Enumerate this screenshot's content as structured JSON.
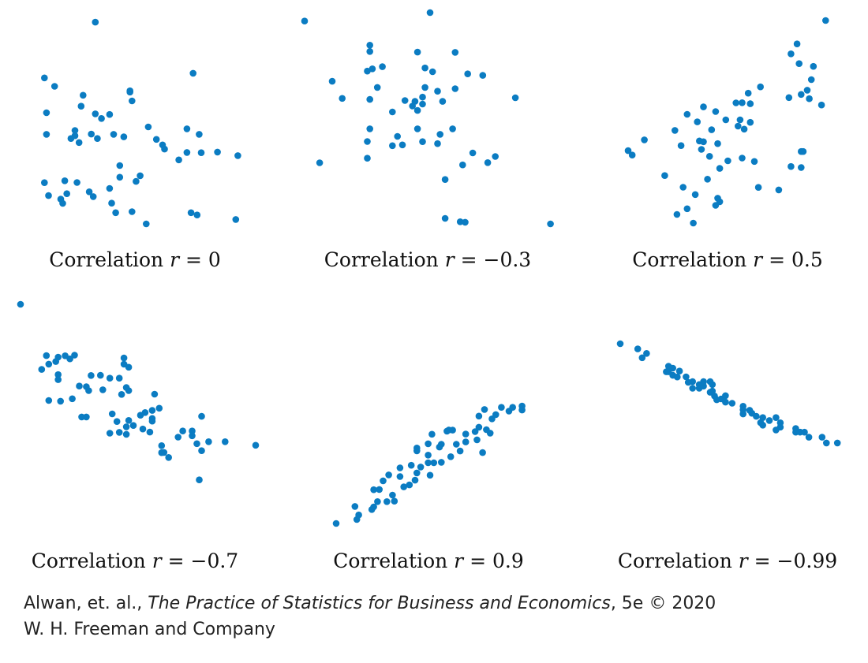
{
  "chart_data": [
    {
      "type": "scatter",
      "caption": {
        "prefix": "Correlation ",
        "var": "r",
        "rest": " = 0"
      },
      "r": 0,
      "points": [
        [
          2.9,
          95.5
        ],
        [
          7.7,
          71.3
        ],
        [
          0.4,
          69.1
        ],
        [
          0.9,
          65.1
        ],
        [
          2.3,
          60.9
        ],
        [
          2.2,
          55.7
        ],
        [
          4.6,
          62.4
        ],
        [
          4.7,
          58.2
        ],
        [
          8.0,
          42.4
        ],
        [
          0.5,
          52.6
        ],
        [
          2.9,
          52.1
        ],
        [
          3.2,
          49.9
        ],
        [
          3.6,
          51.8
        ],
        [
          1.9,
          44.2
        ],
        [
          1.7,
          40.4
        ],
        [
          2.7,
          42.5
        ],
        [
          5.5,
          45.9
        ],
        [
          7.4,
          45.0
        ],
        [
          0.5,
          42.4
        ],
        [
          1.9,
          41.7
        ],
        [
          2.1,
          38.5
        ],
        [
          3.0,
          40.4
        ],
        [
          3.8,
          42.4
        ],
        [
          4.3,
          41.2
        ],
        [
          5.9,
          40.0
        ],
        [
          6.2,
          37.4
        ],
        [
          6.3,
          35.4
        ],
        [
          7.4,
          33.8
        ],
        [
          8.1,
          33.7
        ],
        [
          8.9,
          34.0
        ],
        [
          9.9,
          32.3
        ],
        [
          7.0,
          30.3
        ],
        [
          4.1,
          27.6
        ],
        [
          4.1,
          22.1
        ],
        [
          5.1,
          22.8
        ],
        [
          4.9,
          20.1
        ],
        [
          2.0,
          19.6
        ],
        [
          1.4,
          20.4
        ],
        [
          3.6,
          16.8
        ],
        [
          1.5,
          14.3
        ],
        [
          2.6,
          15.2
        ],
        [
          2.8,
          12.9
        ],
        [
          1.2,
          11.7
        ],
        [
          1.3,
          9.7
        ],
        [
          0.4,
          19.5
        ],
        [
          0.6,
          13.4
        ],
        [
          3.7,
          9.8
        ],
        [
          3.9,
          5.3
        ],
        [
          4.7,
          5.8
        ],
        [
          7.6,
          5.3
        ],
        [
          7.9,
          4.2
        ],
        [
          9.8,
          2.1
        ],
        [
          5.4,
          0.0
        ],
        [
          4.6,
          63.0
        ]
      ]
    },
    {
      "type": "scatter",
      "caption": {
        "prefix": "Correlation ",
        "var": "r",
        "rest": " = −0.3"
      },
      "r": -0.3,
      "points": [
        [
          0.0,
          96.0
        ],
        [
          5.0,
          100.0
        ],
        [
          2.6,
          84.6
        ],
        [
          2.6,
          81.6
        ],
        [
          4.5,
          81.3
        ],
        [
          6.0,
          81.2
        ],
        [
          2.5,
          72.3
        ],
        [
          3.1,
          74.4
        ],
        [
          2.7,
          73.4
        ],
        [
          4.8,
          73.8
        ],
        [
          5.1,
          72.0
        ],
        [
          6.5,
          71.0
        ],
        [
          7.1,
          70.3
        ],
        [
          2.9,
          64.6
        ],
        [
          4.8,
          64.6
        ],
        [
          5.3,
          62.8
        ],
        [
          6.0,
          64.0
        ],
        [
          1.5,
          59.4
        ],
        [
          2.6,
          58.9
        ],
        [
          4.0,
          58.4
        ],
        [
          4.4,
          58.0
        ],
        [
          4.7,
          60.0
        ],
        [
          5.5,
          58.0
        ],
        [
          8.4,
          59.7
        ],
        [
          4.3,
          55.8
        ],
        [
          4.5,
          53.7
        ],
        [
          4.7,
          56.7
        ],
        [
          3.5,
          53.0
        ],
        [
          2.6,
          45.0
        ],
        [
          2.5,
          39.0
        ],
        [
          3.7,
          41.4
        ],
        [
          3.9,
          37.4
        ],
        [
          4.7,
          38.9
        ],
        [
          4.5,
          45.0
        ],
        [
          5.4,
          42.4
        ],
        [
          5.9,
          45.0
        ],
        [
          6.7,
          33.6
        ],
        [
          6.3,
          27.9
        ],
        [
          7.3,
          29.0
        ],
        [
          7.6,
          31.9
        ],
        [
          2.5,
          31.1
        ],
        [
          5.6,
          21.0
        ],
        [
          0.6,
          28.9
        ],
        [
          1.1,
          67.5
        ],
        [
          5.6,
          2.6
        ],
        [
          6.2,
          1.0
        ],
        [
          6.4,
          0.8
        ],
        [
          9.8,
          0.0
        ],
        [
          3.5,
          37.0
        ],
        [
          5.3,
          38.0
        ]
      ]
    },
    {
      "type": "scatter",
      "caption": {
        "prefix": "Correlation ",
        "var": "r",
        "rest": " = 0.5"
      },
      "r": 0.5,
      "points": [
        [
          9.7,
          100.0
        ],
        [
          8.3,
          88.9
        ],
        [
          8.0,
          84.2
        ],
        [
          8.4,
          79.6
        ],
        [
          9.0,
          72.0
        ],
        [
          9.1,
          78.3
        ],
        [
          8.5,
          65.0
        ],
        [
          8.9,
          63.0
        ],
        [
          7.9,
          63.5
        ],
        [
          8.8,
          67.0
        ],
        [
          9.5,
          60.0
        ],
        [
          5.9,
          65.6
        ],
        [
          6.5,
          68.6
        ],
        [
          5.3,
          61.0
        ],
        [
          6.0,
          60.6
        ],
        [
          5.6,
          61.1
        ],
        [
          3.7,
          59.1
        ],
        [
          2.9,
          55.6
        ],
        [
          4.3,
          56.9
        ],
        [
          5.5,
          53.0
        ],
        [
          5.4,
          50.0
        ],
        [
          6.0,
          51.8
        ],
        [
          5.7,
          48.6
        ],
        [
          3.4,
          52.0
        ],
        [
          4.8,
          53.0
        ],
        [
          4.1,
          48.3
        ],
        [
          3.5,
          43.0
        ],
        [
          4.4,
          41.7
        ],
        [
          3.6,
          39.0
        ],
        [
          3.7,
          42.6
        ],
        [
          2.6,
          40.8
        ],
        [
          2.3,
          48.0
        ],
        [
          4.0,
          35.7
        ],
        [
          4.9,
          33.6
        ],
        [
          6.2,
          33.3
        ],
        [
          8.5,
          38.0
        ],
        [
          8.6,
          38.0
        ],
        [
          8.0,
          30.9
        ],
        [
          8.5,
          30.4
        ],
        [
          4.5,
          30.0
        ],
        [
          3.9,
          24.9
        ],
        [
          5.6,
          34.9
        ],
        [
          1.8,
          26.6
        ],
        [
          2.7,
          21.1
        ],
        [
          3.3,
          17.6
        ],
        [
          4.4,
          15.9
        ],
        [
          4.5,
          14.2
        ],
        [
          2.4,
          8.2
        ],
        [
          3.2,
          4.1
        ],
        [
          2.9,
          10.9
        ],
        [
          6.4,
          21.0
        ],
        [
          7.4,
          19.8
        ],
        [
          0.2,
          36.3
        ],
        [
          0.0,
          38.4
        ],
        [
          0.8,
          43.5
        ],
        [
          4.3,
          12.5
        ]
      ]
    },
    {
      "type": "scatter",
      "caption": {
        "prefix": "Correlation ",
        "var": "r",
        "rest": " = −0.7"
      },
      "r": -0.7,
      "points": [
        [
          0.0,
          100.0
        ],
        [
          1.1,
          76.6
        ],
        [
          1.6,
          75.9
        ],
        [
          1.9,
          76.5
        ],
        [
          2.3,
          76.8
        ],
        [
          2.1,
          75.1
        ],
        [
          1.5,
          73.9
        ],
        [
          1.2,
          72.7
        ],
        [
          0.9,
          70.3
        ],
        [
          1.6,
          67.9
        ],
        [
          1.6,
          65.6
        ],
        [
          4.4,
          75.5
        ],
        [
          4.4,
          72.7
        ],
        [
          4.6,
          71.3
        ],
        [
          3.0,
          67.5
        ],
        [
          3.4,
          67.6
        ],
        [
          3.8,
          66.3
        ],
        [
          4.2,
          66.3
        ],
        [
          2.5,
          62.7
        ],
        [
          2.8,
          62.4
        ],
        [
          2.9,
          60.6
        ],
        [
          2.2,
          56.9
        ],
        [
          3.5,
          61.0
        ],
        [
          4.5,
          62.0
        ],
        [
          4.6,
          60.6
        ],
        [
          5.7,
          59.0
        ],
        [
          4.3,
          58.9
        ],
        [
          1.2,
          56.1
        ],
        [
          1.7,
          55.8
        ],
        [
          2.6,
          48.6
        ],
        [
          2.8,
          48.6
        ],
        [
          3.9,
          50.0
        ],
        [
          4.1,
          46.5
        ],
        [
          4.6,
          47.0
        ],
        [
          5.1,
          49.4
        ],
        [
          5.3,
          50.6
        ],
        [
          5.6,
          51.6
        ],
        [
          5.9,
          52.6
        ],
        [
          5.6,
          47.9
        ],
        [
          5.6,
          46.7
        ],
        [
          4.5,
          44.1
        ],
        [
          4.8,
          44.7
        ],
        [
          3.8,
          41.2
        ],
        [
          4.2,
          41.6
        ],
        [
          4.5,
          40.7
        ],
        [
          5.5,
          41.7
        ],
        [
          5.2,
          43.1
        ],
        [
          6.7,
          39.4
        ],
        [
          6.9,
          42.2
        ],
        [
          7.3,
          42.2
        ],
        [
          7.7,
          48.9
        ],
        [
          8.0,
          37.3
        ],
        [
          8.7,
          37.3
        ],
        [
          7.5,
          36.4
        ],
        [
          7.7,
          33.2
        ],
        [
          6.0,
          35.5
        ],
        [
          6.1,
          32.4
        ],
        [
          6.3,
          30.1
        ],
        [
          10.0,
          35.7
        ],
        [
          7.6,
          19.9
        ],
        [
          6.0,
          32.3
        ],
        [
          7.3,
          40.0
        ]
      ]
    },
    {
      "type": "scatter",
      "caption": {
        "prefix": "Correlation ",
        "var": "r",
        "rest": " = 0.9"
      },
      "r": 0.9,
      "points": [
        [
          0.0,
          0.0
        ],
        [
          1.1,
          2.4
        ],
        [
          1.2,
          5.2
        ],
        [
          1.9,
          8.5
        ],
        [
          2.0,
          10.1
        ],
        [
          2.2,
          13.3
        ],
        [
          2.7,
          13.3
        ],
        [
          3.1,
          13.6
        ],
        [
          2.0,
          20.6
        ],
        [
          3.0,
          17.3
        ],
        [
          3.6,
          22.3
        ],
        [
          3.9,
          23.5
        ],
        [
          4.2,
          26.4
        ],
        [
          4.3,
          30.8
        ],
        [
          5.0,
          29.4
        ],
        [
          4.5,
          34.4
        ],
        [
          4.0,
          35.5
        ],
        [
          3.4,
          33.9
        ],
        [
          2.5,
          26.0
        ],
        [
          2.8,
          29.6
        ],
        [
          3.4,
          28.6
        ],
        [
          4.9,
          37.0
        ],
        [
          5.2,
          37.0
        ],
        [
          5.6,
          37.3
        ],
        [
          4.3,
          46.0
        ],
        [
          4.3,
          44.3
        ],
        [
          4.9,
          41.7
        ],
        [
          4.9,
          48.6
        ],
        [
          5.6,
          48.3
        ],
        [
          6.4,
          48.3
        ],
        [
          6.6,
          44.2
        ],
        [
          6.9,
          49.7
        ],
        [
          7.5,
          51.0
        ],
        [
          6.9,
          54.5
        ],
        [
          5.1,
          54.4
        ],
        [
          5.9,
          56.3
        ],
        [
          6.2,
          56.9
        ],
        [
          7.4,
          56.0
        ],
        [
          7.6,
          58.7
        ],
        [
          8.0,
          57.2
        ],
        [
          8.2,
          55.1
        ],
        [
          6.0,
          57.0
        ],
        [
          8.3,
          63.8
        ],
        [
          8.5,
          66.4
        ],
        [
          7.6,
          65.5
        ],
        [
          7.9,
          69.5
        ],
        [
          9.2,
          68.5
        ],
        [
          8.8,
          70.8
        ],
        [
          9.4,
          70.8
        ],
        [
          9.9,
          71.6
        ],
        [
          9.9,
          69.2
        ],
        [
          5.5,
          46.6
        ],
        [
          6.1,
          40.7
        ],
        [
          7.8,
          43.2
        ],
        [
          1.0,
          10.4
        ],
        [
          2.3,
          20.7
        ]
      ]
    },
    {
      "type": "scatter",
      "caption": {
        "prefix": "Correlation ",
        "var": "r",
        "rest": " = −0.99"
      },
      "r": -0.99,
      "points": [
        [
          0.0,
          100.0
        ],
        [
          0.8,
          97.1
        ],
        [
          1.2,
          94.6
        ],
        [
          1.0,
          92.2
        ],
        [
          2.2,
          84.4
        ],
        [
          2.4,
          86.4
        ],
        [
          2.4,
          82.4
        ],
        [
          2.6,
          81.5
        ],
        [
          2.7,
          84.8
        ],
        [
          3.0,
          81.6
        ],
        [
          3.3,
          78.9
        ],
        [
          3.1,
          78.5
        ],
        [
          3.6,
          77.3
        ],
        [
          3.8,
          76.4
        ],
        [
          3.8,
          78.9
        ],
        [
          4.1,
          78.9
        ],
        [
          4.2,
          77.3
        ],
        [
          3.3,
          75.2
        ],
        [
          3.6,
          75.2
        ],
        [
          4.2,
          73.7
        ],
        [
          4.3,
          70.9
        ],
        [
          4.6,
          69.3
        ],
        [
          4.8,
          71.1
        ],
        [
          4.8,
          67.5
        ],
        [
          5.1,
          66.9
        ],
        [
          5.6,
          65.2
        ],
        [
          5.6,
          63.2
        ],
        [
          5.6,
          60.9
        ],
        [
          5.9,
          63.0
        ],
        [
          6.0,
          61.3
        ],
        [
          6.2,
          59.6
        ],
        [
          6.5,
          58.9
        ],
        [
          6.4,
          56.1
        ],
        [
          6.8,
          57.3
        ],
        [
          7.1,
          58.9
        ],
        [
          7.3,
          56.0
        ],
        [
          7.3,
          53.6
        ],
        [
          8.0,
          52.8
        ],
        [
          8.0,
          50.8
        ],
        [
          8.2,
          50.8
        ],
        [
          8.4,
          50.8
        ],
        [
          8.6,
          48.0
        ],
        [
          9.2,
          48.0
        ],
        [
          9.4,
          44.8
        ],
        [
          9.9,
          44.8
        ],
        [
          2.1,
          84.4
        ],
        [
          2.2,
          87.5
        ],
        [
          4.4,
          68.8
        ],
        [
          6.5,
          54.7
        ],
        [
          7.1,
          52.0
        ],
        [
          4.1,
          73.0
        ]
      ]
    }
  ],
  "credit": {
    "line1_prefix": "Alwan, et. al., ",
    "line1_title": "The Practice of Statistics for Business and Economics",
    "line1_suffix": ", 5e © 2020",
    "line2": "W. H. Freeman and Company"
  },
  "colors": {
    "marker": "#0b7cc2",
    "caption_text": "#111111",
    "credit_text": "#222222"
  }
}
